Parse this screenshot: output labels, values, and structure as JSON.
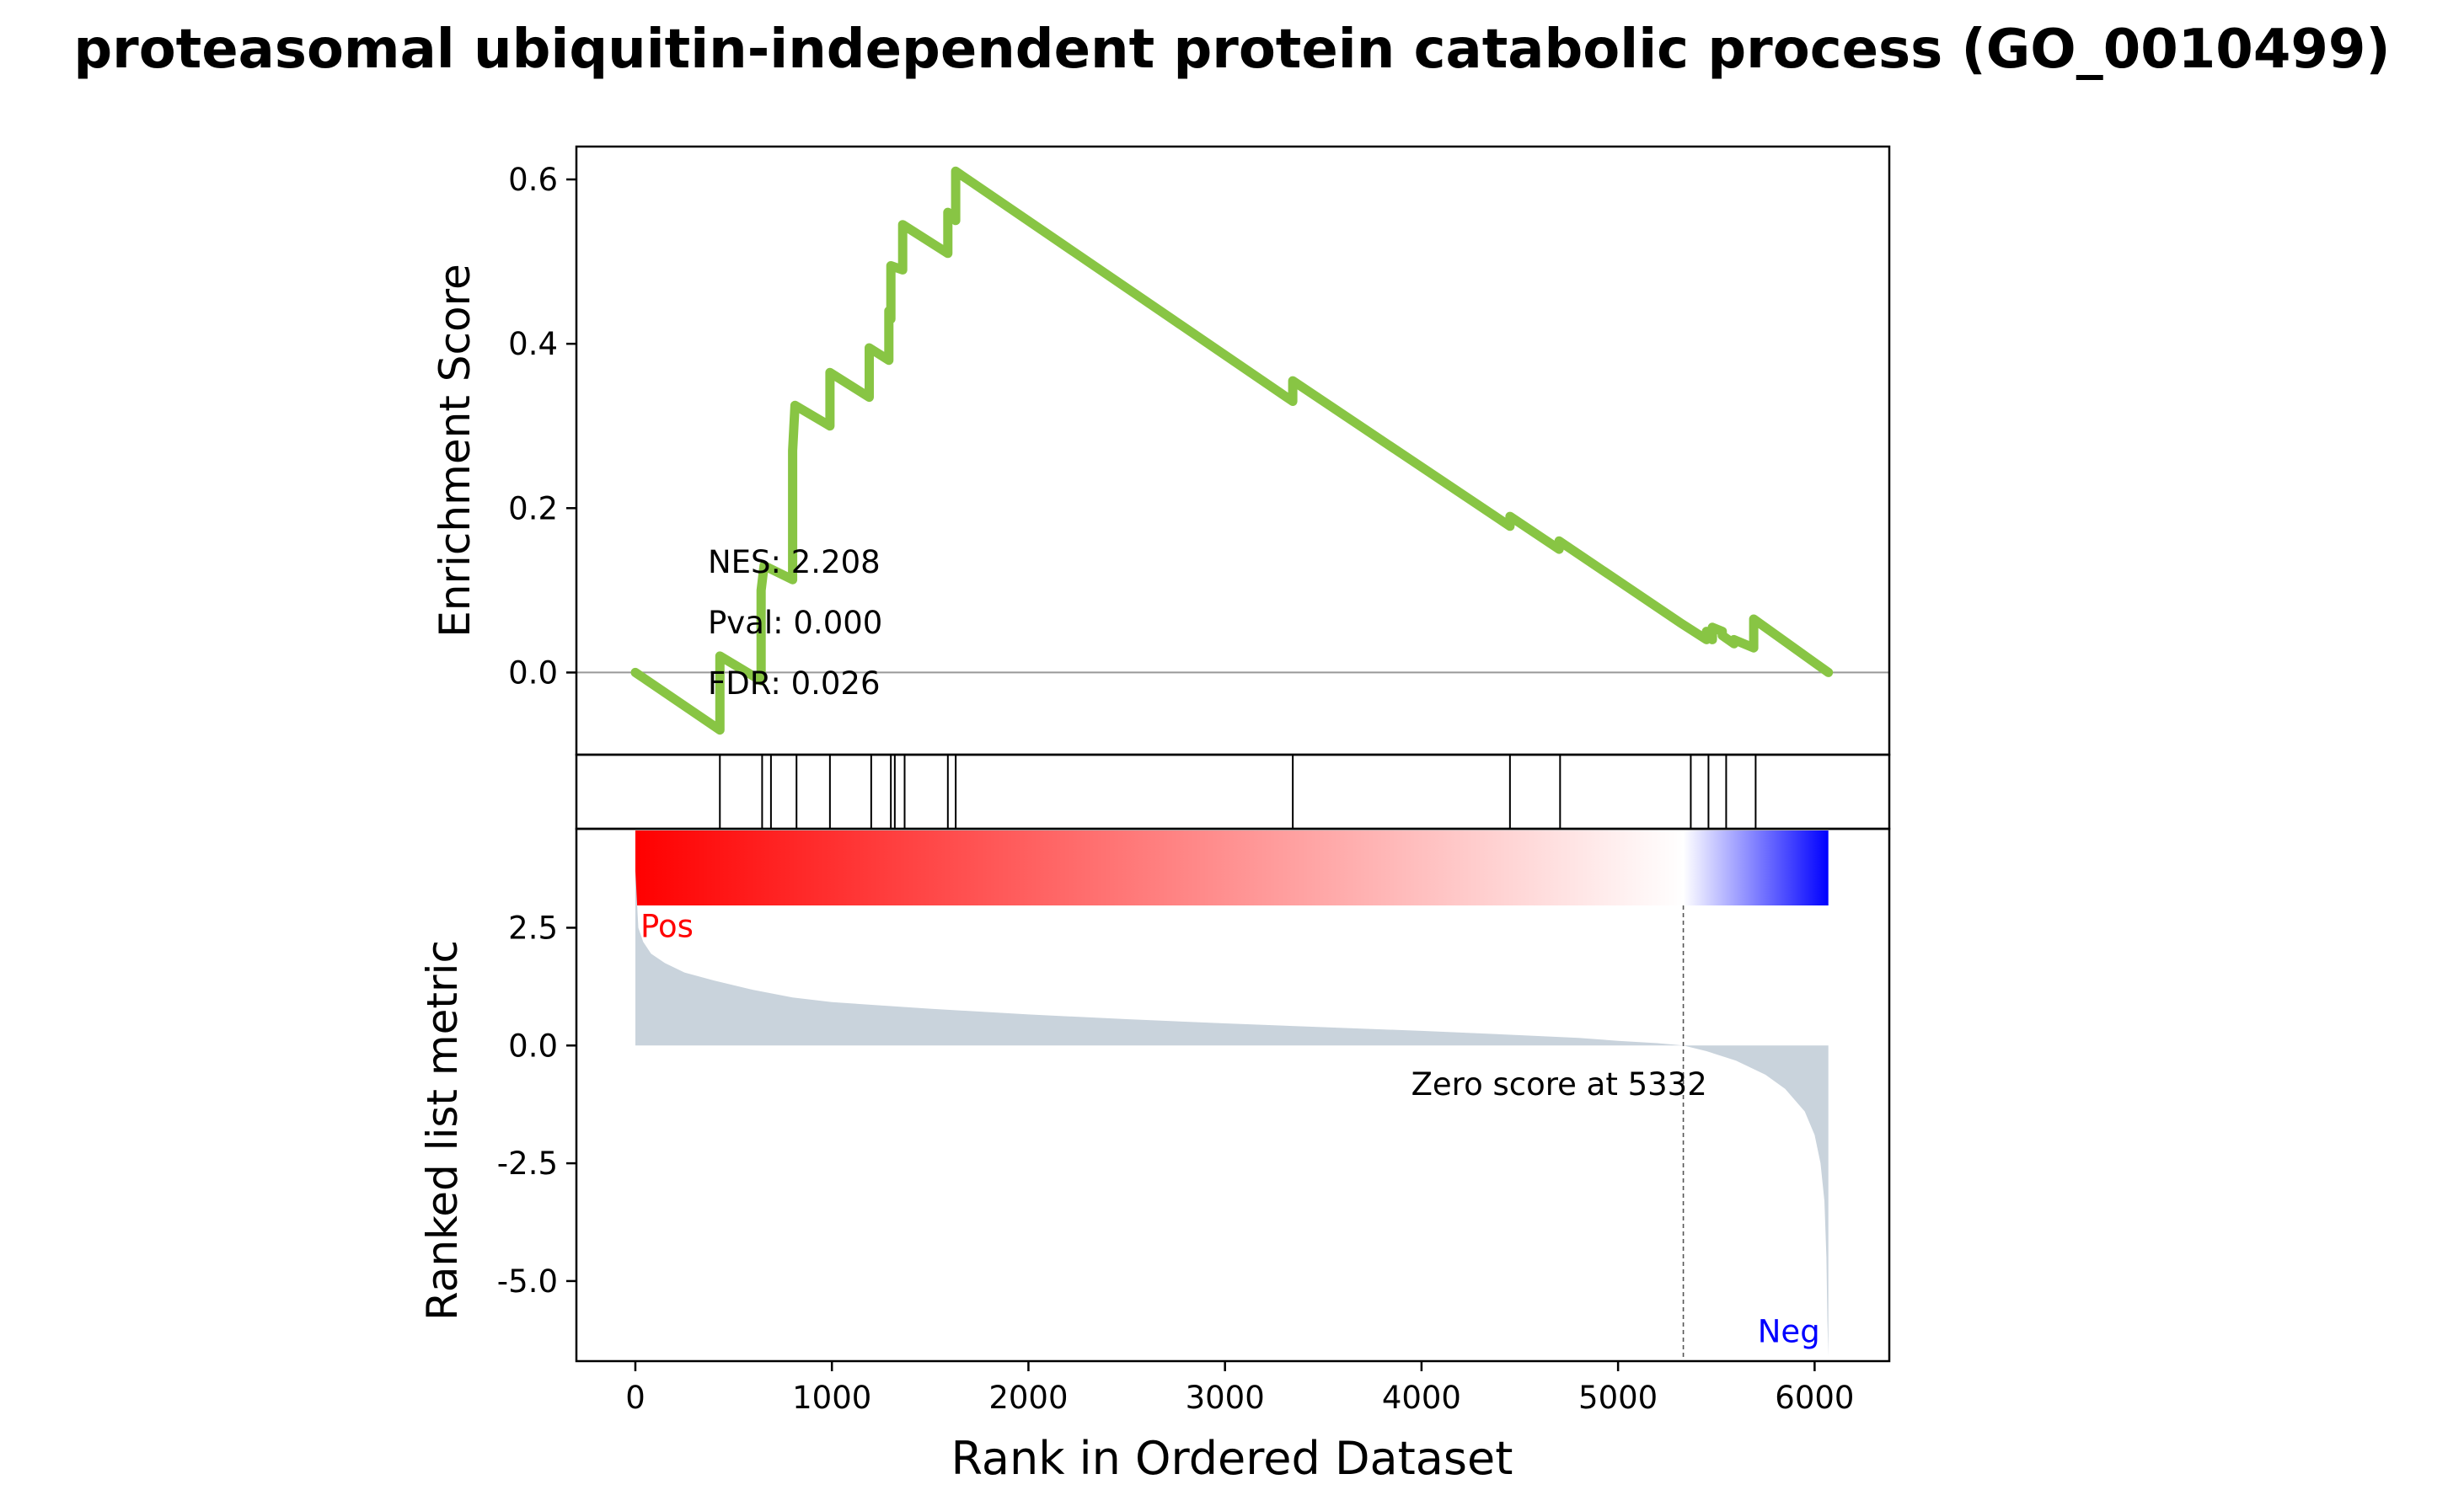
{
  "chart_data": {
    "type": "line",
    "title": "proteasomal ubiquitin-independent protein catabolic process (GO_0010499)",
    "panels": {
      "enrichment": {
        "ylabel": "Enrichment Score",
        "ylim": [
          -0.1,
          0.64
        ],
        "yticks": [
          0.0,
          0.2,
          0.4,
          0.6
        ],
        "ytick_labels": [
          "0.0",
          "0.2",
          "0.4",
          "0.6"
        ],
        "line_color": "#88c544",
        "zero_line_color": "#999999",
        "stats": {
          "nes": "NES: 2.208",
          "pval": "Pval: 0.000",
          "fdr": "FDR: 0.026"
        },
        "series": {
          "x": [
            0,
            430,
            430,
            640,
            640,
            655,
            655,
            800,
            800,
            812,
            812,
            990,
            990,
            1190,
            1190,
            1290,
            1290,
            1300,
            1300,
            1360,
            1360,
            1590,
            1590,
            1630,
            1630,
            3345,
            3345,
            4450,
            4450,
            4700,
            4700,
            5320,
            5320,
            5450,
            5450,
            5480,
            5480,
            5530,
            5530,
            5590,
            5590,
            5690,
            5690,
            6070
          ],
          "y": [
            0.0,
            -0.07,
            0.02,
            -0.01,
            0.1,
            0.13,
            0.13,
            0.113,
            0.27,
            0.325,
            0.325,
            0.3,
            0.365,
            0.335,
            0.395,
            0.38,
            0.44,
            0.43,
            0.495,
            0.49,
            0.545,
            0.51,
            0.56,
            0.55,
            0.61,
            0.33,
            0.355,
            0.178,
            0.19,
            0.15,
            0.16,
            0.06,
            0.06,
            0.04,
            0.05,
            0.04,
            0.055,
            0.05,
            0.045,
            0.035,
            0.04,
            0.03,
            0.065,
            0.0
          ]
        }
      },
      "hits": {
        "positions": [
          430,
          645,
          690,
          820,
          990,
          1200,
          1300,
          1320,
          1370,
          1590,
          1630,
          3345,
          4450,
          4705,
          5370,
          5460,
          5550,
          5700
        ]
      },
      "ranked_metric": {
        "ylabel": "Ranked list metric",
        "ylim": [
          -6.7,
          4.6
        ],
        "yticks": [
          2.5,
          0.0,
          -2.5,
          -5.0
        ],
        "ytick_labels": [
          "2.5",
          "0.0",
          "-2.5",
          "-5.0"
        ],
        "fill_color": "#c9d3dc",
        "gradient_colors": [
          "#ff0000",
          "#ffffff",
          "#0000ff"
        ],
        "zero_cross_fraction": 0.8785,
        "pos_label": "Pos",
        "neg_label": "Neg",
        "pos_color": "#ff0000",
        "neg_color": "#0000ff",
        "zero_score_text": "Zero score at 5332",
        "zero_score_rank": 5332,
        "curve": {
          "x": [
            0,
            15,
            40,
            80,
            150,
            250,
            400,
            600,
            800,
            1000,
            1500,
            2000,
            2500,
            3000,
            3500,
            4000,
            4500,
            4800,
            5000,
            5200,
            5332,
            5450,
            5600,
            5750,
            5850,
            5950,
            6000,
            6030,
            6050,
            6060,
            6065,
            6070
          ],
          "y": [
            3.7,
            2.5,
            2.2,
            1.95,
            1.75,
            1.55,
            1.38,
            1.18,
            1.02,
            0.92,
            0.78,
            0.66,
            0.56,
            0.47,
            0.39,
            0.31,
            0.22,
            0.16,
            0.1,
            0.05,
            0.0,
            -0.12,
            -0.32,
            -0.62,
            -0.92,
            -1.4,
            -1.9,
            -2.5,
            -3.3,
            -4.5,
            -5.8,
            -6.6
          ]
        }
      }
    },
    "xaxis": {
      "label": "Rank in Ordered Dataset",
      "xlim": [
        -300,
        6380
      ],
      "ticks": [
        0,
        1000,
        2000,
        3000,
        4000,
        5000,
        6000
      ],
      "tick_labels": [
        "0",
        "1000",
        "2000",
        "3000",
        "4000",
        "5000",
        "6000"
      ],
      "data_max": 6070
    }
  }
}
